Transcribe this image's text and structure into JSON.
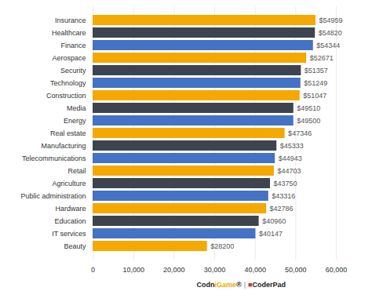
{
  "chart_data": {
    "type": "bar",
    "orientation": "horizontal",
    "categories": [
      "Beauty",
      "IT services",
      "Education",
      "Hardware",
      "Public administration",
      "Agriculture",
      "Retail",
      "Telecommunications",
      "Manufacturing",
      "Real estate",
      "Energy",
      "Media",
      "Construction",
      "Technology",
      "Security",
      "Aerospace",
      "Finance",
      "Healthcare",
      "Insurance"
    ],
    "values": [
      28200,
      40147,
      40960,
      42786,
      43316,
      43750,
      44703,
      44943,
      45333,
      47346,
      49500,
      49510,
      51047,
      51249,
      51357,
      52671,
      54344,
      54820,
      54959
    ],
    "value_labels": [
      "$28200",
      "$40147",
      "$40960",
      "$42786",
      "$43316",
      "$43750",
      "$44703",
      "$44943",
      "$45333",
      "$47346",
      "$49500",
      "$49510",
      "$51047",
      "$51249",
      "$51357",
      "$52671",
      "$54344",
      "$54820",
      "$54959"
    ],
    "data_labels": true,
    "colors": [
      "#F5A800",
      "#4472C4",
      "#3D4450",
      "#F5A800",
      "#4472C4",
      "#3D4450",
      "#F5A800",
      "#4472C4",
      "#3D4450",
      "#F5A800",
      "#4472C4",
      "#3D4450",
      "#F5A800",
      "#4472C4",
      "#3D4450",
      "#F5A800",
      "#4472C4",
      "#3D4450",
      "#F5A800"
    ],
    "xlim": [
      0,
      60000
    ],
    "xticks": [
      0,
      {
        "value": 10000,
        "label": "10,000"
      },
      {
        "value": 20000,
        "label": "20,000"
      },
      {
        "value": 30000,
        "label": "30,000"
      },
      {
        "value": 40000,
        "label": "40,000"
      },
      {
        "value": 50000,
        "label": "50,000"
      },
      {
        "value": 60000,
        "label": "60,000"
      }
    ],
    "grid": true,
    "annotations": [
      {
        "text": "Codn",
        "color": "#222222"
      },
      {
        "text": "i",
        "color": "#F5A800"
      },
      {
        "text": "Game",
        "color": "#F5A800"
      },
      {
        "text": "®",
        "color": "#222222"
      },
      {
        "text": "|",
        "color": "#888888"
      },
      {
        "text": "■",
        "color": "#C0392B"
      },
      {
        "text": "CoderPad",
        "color": "#222222"
      }
    ]
  }
}
